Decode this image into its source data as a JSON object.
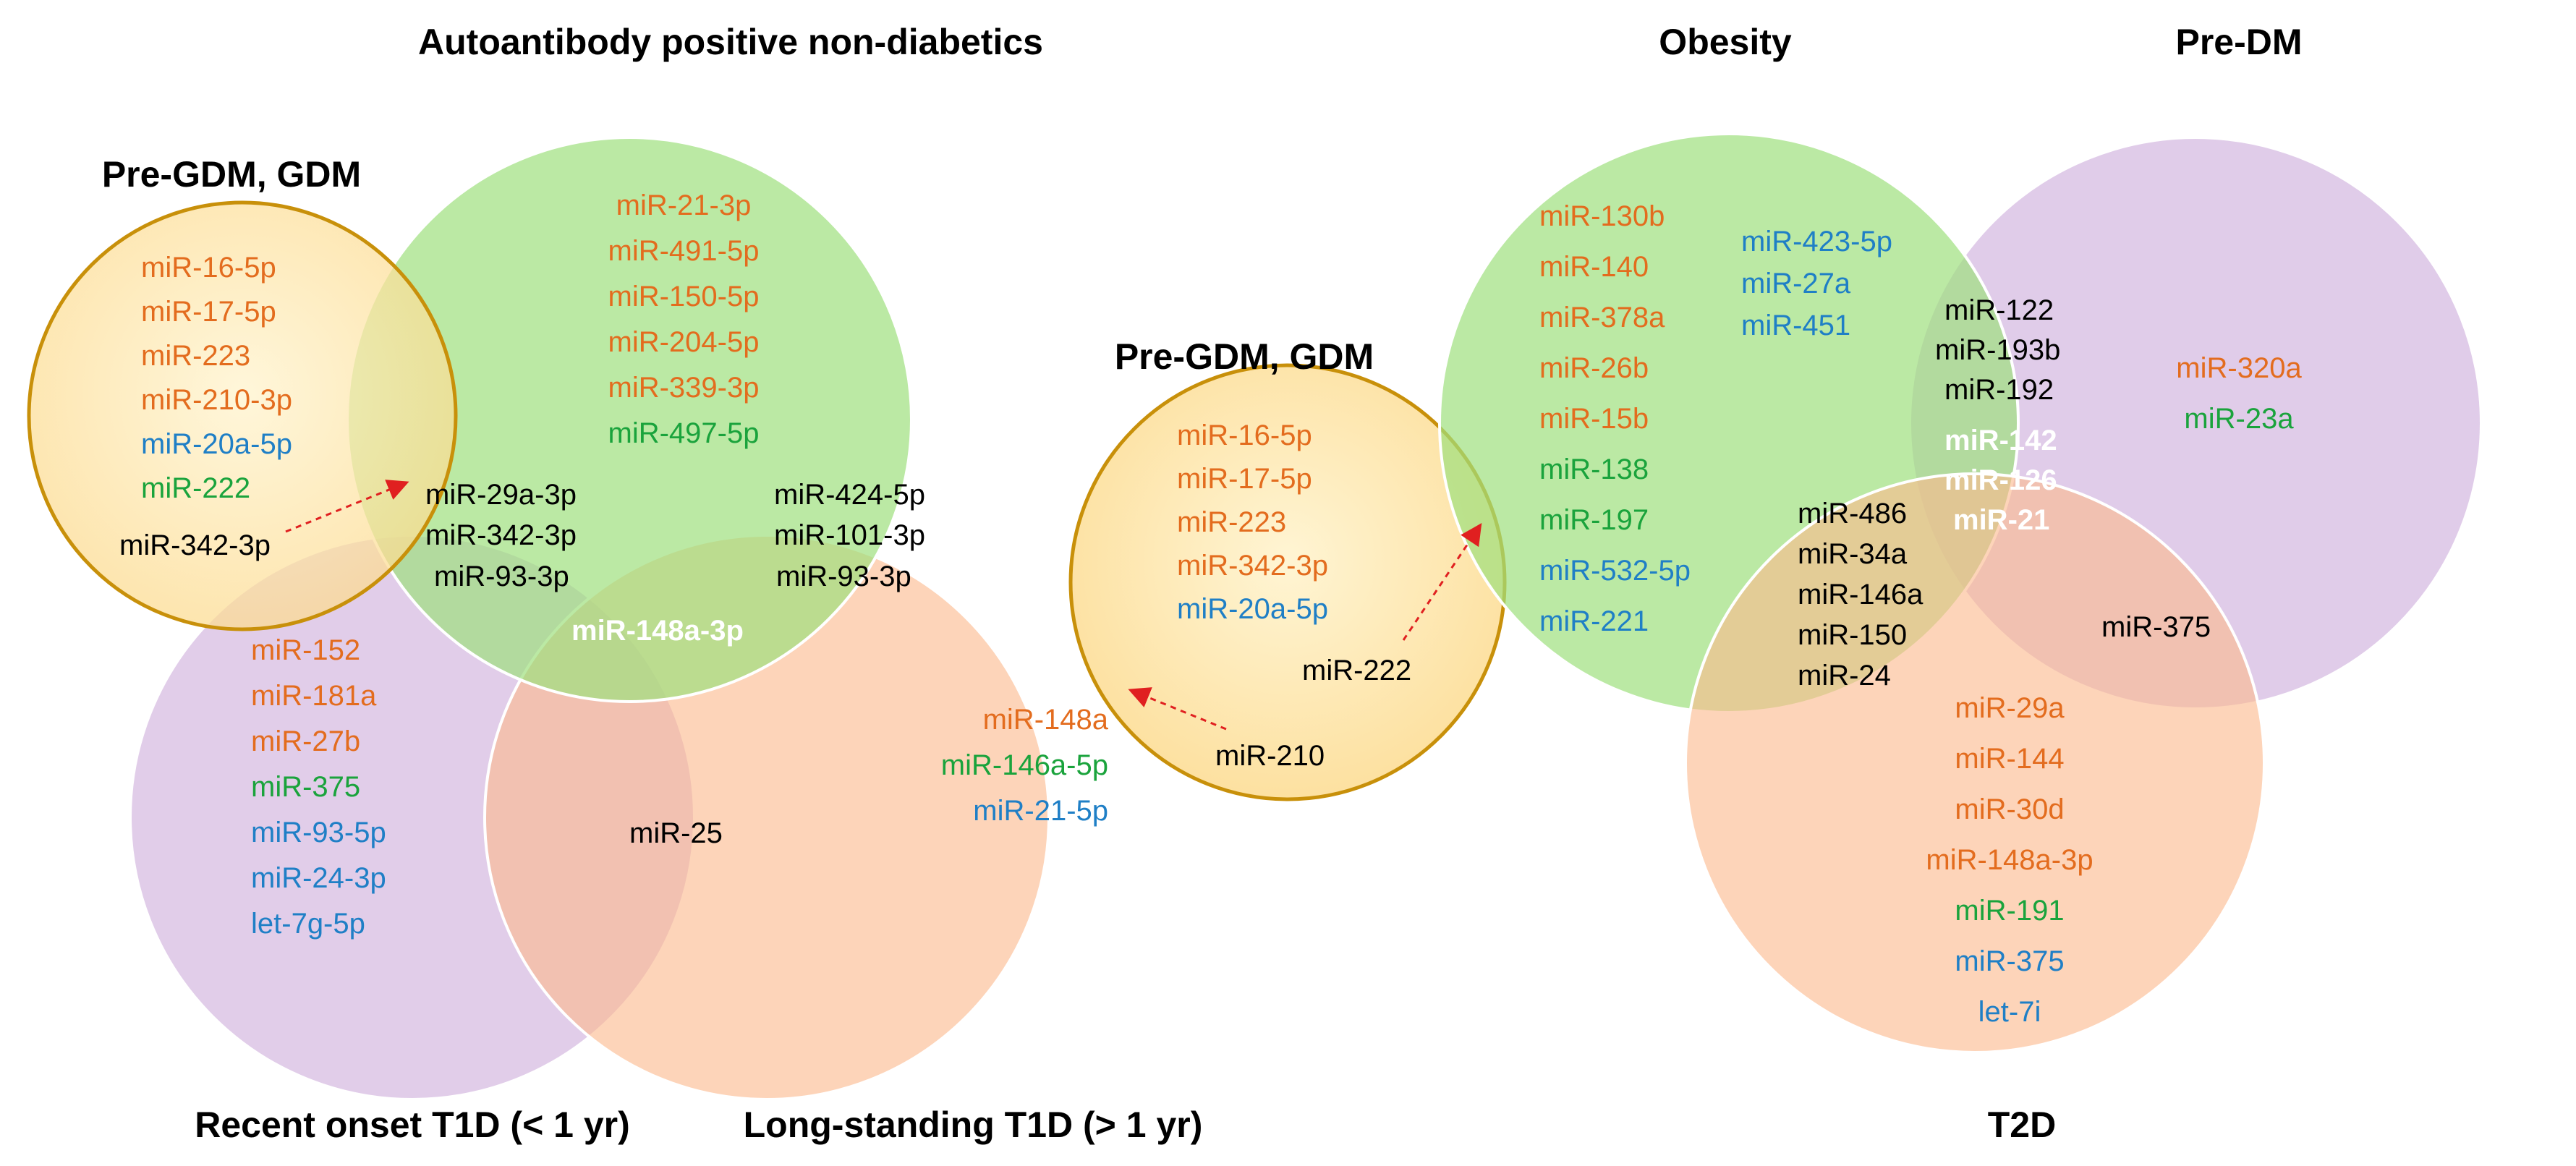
{
  "colors": {
    "orange": "#e36c1e",
    "blue": "#1f7fc6",
    "green": "#1aa33c",
    "black": "#000000",
    "white": "#ffffff",
    "set_green": "#9edf7e",
    "set_purple": "#d4b8e0",
    "set_peach": "#fcb98e",
    "set_yellow": "#fde7a5",
    "set_outline_gold": "#c8900a"
  },
  "left_diagram": {
    "titles": {
      "autoantibody": "Autoantibody positive non-diabetics",
      "pre_gdm": "Pre-GDM, GDM",
      "recent_onset": "Recent onset T1D (< 1 yr)",
      "long_standing": "Long-standing T1D (> 1 yr)"
    },
    "autoantibody_only": [
      {
        "text": "miR-21-3p",
        "color": "orange"
      },
      {
        "text": "miR-491-5p",
        "color": "orange"
      },
      {
        "text": "miR-150-5p",
        "color": "orange"
      },
      {
        "text": "miR-204-5p",
        "color": "orange"
      },
      {
        "text": "miR-339-3p",
        "color": "orange"
      },
      {
        "text": "miR-497-5p",
        "color": "green"
      }
    ],
    "pre_gdm_only": [
      {
        "text": "miR-16-5p",
        "color": "orange"
      },
      {
        "text": "miR-17-5p",
        "color": "orange"
      },
      {
        "text": "miR-223",
        "color": "orange"
      },
      {
        "text": "miR-210-3p",
        "color": "orange"
      },
      {
        "text": "miR-20a-5p",
        "color": "blue"
      },
      {
        "text": "miR-222",
        "color": "green"
      }
    ],
    "pre_gdm_arrow_label": "miR-342-3p",
    "auto_recent": [
      "miR-29a-3p",
      "miR-342-3p",
      "miR-93-3p"
    ],
    "auto_long": [
      "miR-424-5p",
      "miR-101-3p",
      "miR-93-3p"
    ],
    "center": "miR-148a-3p",
    "recent_only": [
      {
        "text": "miR-152",
        "color": "orange"
      },
      {
        "text": "miR-181a",
        "color": "orange"
      },
      {
        "text": "miR-27b",
        "color": "orange"
      },
      {
        "text": "miR-375",
        "color": "green"
      },
      {
        "text": "miR-93-5p",
        "color": "blue"
      },
      {
        "text": "miR-24-3p",
        "color": "blue"
      },
      {
        "text": "let-7g-5p",
        "color": "blue"
      }
    ],
    "recent_long": "miR-25",
    "long_only": [
      {
        "text": "miR-148a",
        "color": "orange"
      },
      {
        "text": "miR-146a-5p",
        "color": "green"
      },
      {
        "text": "miR-21-5p",
        "color": "blue"
      }
    ]
  },
  "middle_diagram": {
    "title": "Pre-GDM, GDM",
    "items": [
      {
        "text": "miR-16-5p",
        "color": "orange"
      },
      {
        "text": "miR-17-5p",
        "color": "orange"
      },
      {
        "text": "miR-223",
        "color": "orange"
      },
      {
        "text": "miR-342-3p",
        "color": "orange"
      },
      {
        "text": "miR-20a-5p",
        "color": "blue"
      }
    ],
    "arrow_label_222": "miR-222",
    "arrow_label_210": "miR-210"
  },
  "right_diagram": {
    "titles": {
      "obesity": "Obesity",
      "pre_dm": "Pre-DM",
      "t2d": "T2D"
    },
    "obesity_col1": [
      {
        "text": "miR-130b",
        "color": "orange"
      },
      {
        "text": "miR-140",
        "color": "orange"
      },
      {
        "text": "miR-378a",
        "color": "orange"
      },
      {
        "text": "miR-26b",
        "color": "orange"
      },
      {
        "text": "miR-15b",
        "color": "orange"
      },
      {
        "text": "miR-138",
        "color": "green"
      },
      {
        "text": "miR-197",
        "color": "green"
      },
      {
        "text": "miR-532-5p",
        "color": "blue"
      },
      {
        "text": "miR-221",
        "color": "blue"
      }
    ],
    "obesity_col2": [
      {
        "text": "miR-423-5p",
        "color": "blue"
      },
      {
        "text": "miR-27a",
        "color": "blue"
      },
      {
        "text": "miR-451",
        "color": "blue"
      }
    ],
    "obesity_predm": [
      "miR-122",
      "miR-193b",
      "miR-192"
    ],
    "center": [
      "miR-142",
      "miR-126",
      "miR-21"
    ],
    "predm_only": [
      {
        "text": "miR-320a",
        "color": "orange"
      },
      {
        "text": "miR-23a",
        "color": "green"
      }
    ],
    "obesity_t2d": [
      "miR-486",
      "miR-34a",
      "miR-146a",
      "miR-150",
      "miR-24"
    ],
    "predm_t2d": "miR-375",
    "t2d_only": [
      {
        "text": "miR-29a",
        "color": "orange"
      },
      {
        "text": "miR-144",
        "color": "orange"
      },
      {
        "text": "miR-30d",
        "color": "orange"
      },
      {
        "text": "miR-148a-3p",
        "color": "orange"
      },
      {
        "text": "miR-191",
        "color": "green"
      },
      {
        "text": "miR-375",
        "color": "blue"
      },
      {
        "text": "let-7i",
        "color": "blue"
      }
    ]
  }
}
